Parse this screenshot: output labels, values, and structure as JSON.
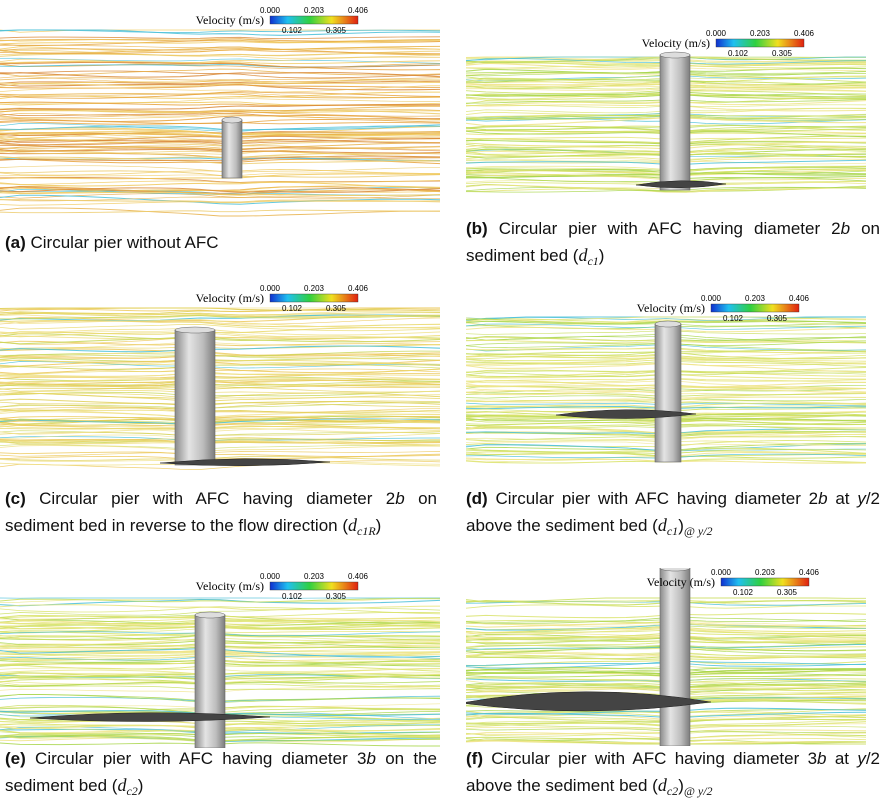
{
  "panels": [
    {
      "label": "(a)",
      "caption": [
        " Circular pier without AFC"
      ],
      "legend": {
        "title": "Velocity (m/s)",
        "ticks_top": [
          "0.000",
          "0.203",
          "0.406"
        ],
        "ticks_bottom": [
          "0.102",
          "0.305"
        ]
      }
    },
    {
      "label": "(b)",
      "caption": [
        " Circular pier with AFC having diameter 2",
        "b",
        " on sediment bed (",
        "d",
        "c1",
        ")"
      ],
      "legend": {
        "title": "Velocity (m/s)",
        "ticks_top": [
          "0.000",
          "0.203",
          "0.406"
        ],
        "ticks_bottom": [
          "0.102",
          "0.305"
        ]
      }
    },
    {
      "label": "(c)",
      "caption": [
        " Circular pier with AFC having diameter 2",
        "b",
        " on sediment bed in reverse to the flow direction (",
        "d",
        "c1R",
        ")"
      ],
      "legend": {
        "title": "Velocity (m/s)",
        "ticks_top": [
          "0.000",
          "0.203",
          "0.406"
        ],
        "ticks_bottom": [
          "0.102",
          "0.305"
        ]
      }
    },
    {
      "label": "(d)",
      "caption": [
        " Circular pier with AFC having diameter 2",
        "b",
        " at ",
        "y",
        "/2 above the sediment bed (",
        "d",
        "c1",
        ")",
        "@ y/2"
      ],
      "legend": {
        "title": "Velocity (m/s)",
        "ticks_top": [
          "0.000",
          "0.203",
          "0.406"
        ],
        "ticks_bottom": [
          "0.102",
          "0.305"
        ]
      }
    },
    {
      "label": "(e)",
      "caption": [
        " Circular pier with AFC having diameter 3",
        "b",
        " on the sediment bed (",
        "d",
        "c2",
        ")"
      ],
      "legend": {
        "title": "Velocity (m/s)",
        "ticks_top": [
          "0.000",
          "0.203",
          "0.406"
        ],
        "ticks_bottom": [
          "0.102",
          "0.305"
        ]
      }
    },
    {
      "label": "(f)",
      "caption": [
        " Circular pier with AFC having diameter 3",
        "b",
        " at ",
        "y",
        "/2 above the sediment bed (",
        "d",
        "c2",
        ")",
        "@ y/2"
      ],
      "legend": {
        "title": "Velocity (m/s)",
        "ticks_top": [
          "0.000",
          "0.203",
          "0.406"
        ],
        "ticks_bottom": [
          "0.102",
          "0.305"
        ]
      }
    }
  ]
}
